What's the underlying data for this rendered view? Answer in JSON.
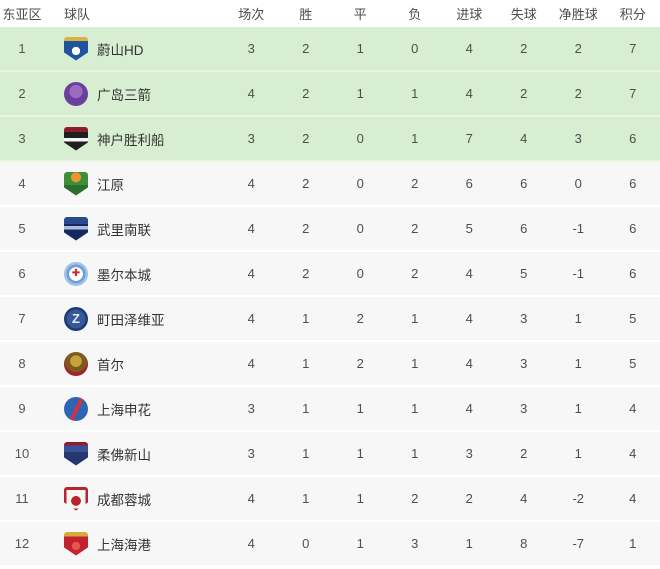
{
  "colors": {
    "qualified_row_bg": "#d7eed3",
    "normal_row_bg": "#f6f7f6",
    "header_text": "#4c4c4c",
    "body_text": "#4e4e4e",
    "team_text": "#333333"
  },
  "table": {
    "columns": [
      {
        "key": "rank",
        "label": "东亚区"
      },
      {
        "key": "team",
        "label": "球队"
      },
      {
        "key": "played",
        "label": "场次"
      },
      {
        "key": "win",
        "label": "胜"
      },
      {
        "key": "draw",
        "label": "平"
      },
      {
        "key": "loss",
        "label": "负"
      },
      {
        "key": "gf",
        "label": "进球"
      },
      {
        "key": "ga",
        "label": "失球"
      },
      {
        "key": "gd",
        "label": "净胜球"
      },
      {
        "key": "pts",
        "label": "积分"
      }
    ],
    "stat_keys": [
      "played",
      "win",
      "draw",
      "loss",
      "gf",
      "ga",
      "gd",
      "pts"
    ],
    "rows": [
      {
        "rank": 1,
        "team": "蔚山HD",
        "qualified": true,
        "stats": [
          3,
          2,
          1,
          0,
          4,
          2,
          2,
          7
        ],
        "logo": {
          "icon": "ulsan-hd-crest",
          "shape": "shield",
          "bg": "radial-gradient(circle at 50% 58%, #ffffff 0 22%, rgba(255,255,255,0) 23%), linear-gradient(180deg,#d9b53e 0 16%,#2053a0 16%)",
          "glyph": "",
          "glyph_color": "#ffffff",
          "ring": ""
        }
      },
      {
        "rank": 2,
        "team": "广岛三箭",
        "qualified": true,
        "stats": [
          4,
          2,
          1,
          1,
          4,
          2,
          2,
          7
        ],
        "logo": {
          "icon": "sanfrecce-hiroshima-crest",
          "shape": "circle",
          "bg": "radial-gradient(circle at 50% 40%, #9a6cc0 0 35%, #6a3f9d 36%)",
          "glyph": "",
          "glyph_color": "#ffffff",
          "ring": ""
        }
      },
      {
        "rank": 3,
        "team": "神户胜利船",
        "qualified": true,
        "stats": [
          3,
          2,
          0,
          1,
          7,
          4,
          3,
          6
        ],
        "logo": {
          "icon": "vissel-kobe-crest",
          "shape": "shield",
          "bg": "linear-gradient(180deg,#8e1b2e 0 20%, #1f1f1f 20% 45%, #f5f5f5 45% 60%, #1f1f1f 60%)",
          "glyph": "",
          "glyph_color": "#ffffff",
          "ring": ""
        }
      },
      {
        "rank": 4,
        "team": "江原",
        "qualified": false,
        "stats": [
          4,
          2,
          0,
          2,
          6,
          6,
          0,
          6
        ],
        "logo": {
          "icon": "gangwon-crest",
          "shape": "shield",
          "bg": "radial-gradient(circle at 50% 22%, #e8962e 0 22%, rgba(0,0,0,0) 23%), linear-gradient(180deg,#3f8f3a 0 55%, #2c6e2e 55%)",
          "glyph": "",
          "glyph_color": "#ffffff",
          "ring": ""
        }
      },
      {
        "rank": 5,
        "team": "武里南联",
        "qualified": false,
        "stats": [
          4,
          2,
          0,
          2,
          5,
          6,
          -1,
          6
        ],
        "logo": {
          "icon": "buriram-united-crest",
          "shape": "shield",
          "bg": "linear-gradient(180deg, rgba(255,255,255,0) 0 38%, rgba(190,205,235,0.9) 38% 52%, rgba(0,0,0,0) 52%), linear-gradient(180deg,#2a4a8e 0 30%, #16295e 30%)",
          "glyph": "",
          "glyph_color": "#ffffff",
          "ring": ""
        }
      },
      {
        "rank": 6,
        "team": "墨尔本城",
        "qualified": false,
        "stats": [
          4,
          2,
          0,
          2,
          4,
          5,
          -1,
          6
        ],
        "logo": {
          "icon": "melbourne-city-crest",
          "shape": "circle",
          "bg": "radial-gradient(circle, #ffffff 0 40%, #6f9fd8 41% 55%, #9cc4e4 56%)",
          "glyph": "✚",
          "glyph_color": "#d2232a",
          "ring": ""
        }
      },
      {
        "rank": 7,
        "team": "町田泽维亚",
        "qualified": false,
        "stats": [
          4,
          1,
          2,
          1,
          4,
          3,
          1,
          5
        ],
        "logo": {
          "icon": "machida-zelvia-crest",
          "shape": "circle",
          "bg": "radial-gradient(circle, #35589c 0 55%, #1c3a74 56%)",
          "glyph": "Z",
          "glyph_color": "#e8eaf0",
          "ring": ""
        }
      },
      {
        "rank": 8,
        "team": "首尔",
        "qualified": false,
        "stats": [
          4,
          1,
          2,
          1,
          4,
          3,
          1,
          5
        ],
        "logo": {
          "icon": "fc-seoul-crest",
          "shape": "circle",
          "bg": "radial-gradient(circle at 50% 38%, #c9a23c 0 30%, #7c5a1e 31% 58%, #a3202a 59%)",
          "glyph": "",
          "glyph_color": "#ffffff",
          "ring": ""
        }
      },
      {
        "rank": 9,
        "team": "上海申花",
        "qualified": false,
        "stats": [
          3,
          1,
          1,
          1,
          4,
          3,
          1,
          4
        ],
        "logo": {
          "icon": "shanghai-shenhua-crest",
          "shape": "circle",
          "bg": "linear-gradient(115deg, #2f63b4 0 46%, #cf3340 46% 58%, #2f63b4 58%)",
          "glyph": "",
          "glyph_color": "#ffffff",
          "ring": ""
        }
      },
      {
        "rank": 10,
        "team": "柔佛新山",
        "qualified": false,
        "stats": [
          3,
          1,
          1,
          1,
          3,
          2,
          1,
          4
        ],
        "logo": {
          "icon": "johor-darul-tazim-crest",
          "shape": "shield",
          "bg": "linear-gradient(180deg, #8e1b2e 0 14%, #3a5098 14% 42%, #26366f 42%)",
          "glyph": "",
          "glyph_color": "#ffffff",
          "ring": ""
        }
      },
      {
        "rank": 11,
        "team": "成都蓉城",
        "qualified": false,
        "stats": [
          4,
          1,
          1,
          2,
          2,
          4,
          -2,
          4
        ],
        "logo": {
          "icon": "chengdu-rongcheng-crest",
          "shape": "shield",
          "bg": "linear-gradient(180deg, #b5252f 0 12%, rgba(0,0,0,0) 12%), radial-gradient(circle at 50% 58%, #b5252f 0 26%, rgba(0,0,0,0) 27%), linear-gradient(#faf7f2,#faf7f2)",
          "glyph": "",
          "glyph_color": "#ffffff",
          "ring": "#b5252f"
        }
      },
      {
        "rank": 12,
        "team": "上海海港",
        "qualified": false,
        "stats": [
          4,
          0,
          1,
          3,
          1,
          8,
          -7,
          1
        ],
        "logo": {
          "icon": "shanghai-port-crest",
          "shape": "shield",
          "bg": "radial-gradient(circle at 50% 58%, #e8554a 0 22%, rgba(0,0,0,0) 23%), linear-gradient(180deg, #d8a93c 0 18%, #c2242f 18%)",
          "glyph": "",
          "glyph_color": "#ffffff",
          "ring": ""
        }
      }
    ]
  }
}
